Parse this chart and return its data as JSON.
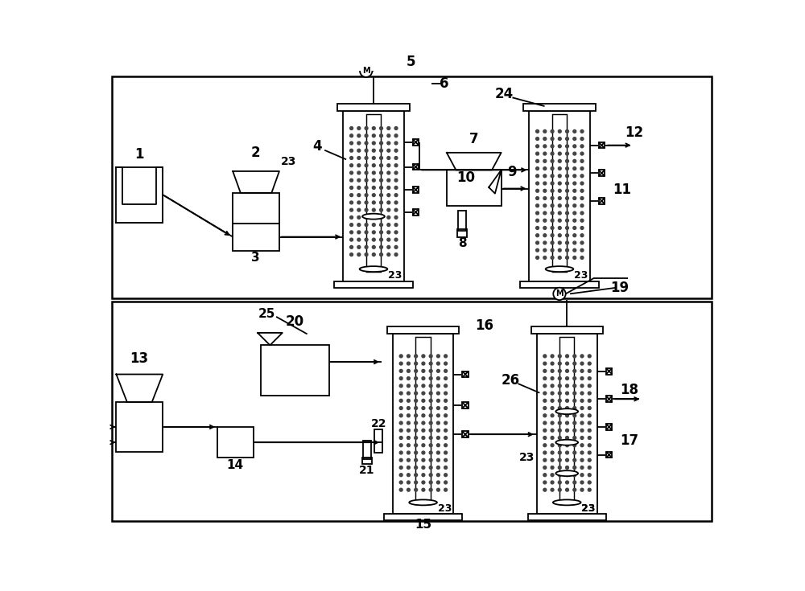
{
  "bg_color": "#ffffff",
  "line_color": "#000000",
  "dot_color": "#444444",
  "fig_width": 10.0,
  "fig_height": 7.35,
  "dpi": 100
}
